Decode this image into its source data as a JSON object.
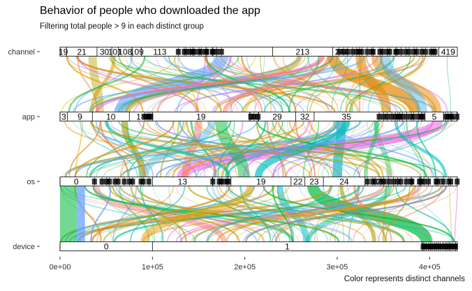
{
  "chart_data": {
    "type": "alluvial",
    "title": "Behavior of people who downloaded the app",
    "subtitle": "Filtering total people > 9 in each distinct group",
    "caption": "Color represents distinct channels",
    "axes": [
      "channel",
      "app",
      "os",
      "device"
    ],
    "xlim": [
      0,
      430000
    ],
    "xticks": [
      0,
      100000,
      200000,
      300000,
      400000
    ],
    "xtick_labels": [
      "0e+00",
      "1e+05",
      "2e+05",
      "3e+05",
      "4e+05"
    ],
    "strata": {
      "channel": [
        {
          "label": "19",
          "start": 0,
          "end": 7000
        },
        {
          "label": "21",
          "start": 7000,
          "end": 40000
        },
        {
          "label": "30",
          "start": 40000,
          "end": 56000
        },
        {
          "label": "101",
          "start": 56000,
          "end": 63000
        },
        {
          "label": "108",
          "start": 63000,
          "end": 78000
        },
        {
          "label": "109",
          "start": 78000,
          "end": 88000
        },
        {
          "label": "113",
          "start": 88000,
          "end": 128000
        },
        {
          "label": "213",
          "start": 230000,
          "end": 295000
        },
        {
          "label": "244",
          "start": 295000,
          "end": 315000
        },
        {
          "label": "419",
          "start": 410000,
          "end": 430000
        }
      ],
      "app": [
        {
          "label": "3",
          "start": 0,
          "end": 8000
        },
        {
          "label": "9",
          "start": 8000,
          "end": 35000
        },
        {
          "label": "10",
          "start": 35000,
          "end": 75000
        },
        {
          "label": "18",
          "start": 75000,
          "end": 100000
        },
        {
          "label": "19",
          "start": 100000,
          "end": 205000
        },
        {
          "label": "26",
          "start": 205000,
          "end": 215000
        },
        {
          "label": "29",
          "start": 215000,
          "end": 255000
        },
        {
          "label": "32",
          "start": 255000,
          "end": 275000
        },
        {
          "label": "35",
          "start": 275000,
          "end": 345000
        },
        {
          "label": "5",
          "start": 395000,
          "end": 415000
        },
        {
          "label": "15",
          "start": 415000,
          "end": 430000
        }
      ],
      "os": [
        {
          "label": "0",
          "start": 0,
          "end": 35000
        },
        {
          "label": "13",
          "start": 100000,
          "end": 165000
        },
        {
          "label": "18",
          "start": 165000,
          "end": 185000
        },
        {
          "label": "19",
          "start": 185000,
          "end": 250000
        },
        {
          "label": "22",
          "start": 250000,
          "end": 265000
        },
        {
          "label": "23",
          "start": 265000,
          "end": 285000
        },
        {
          "label": "24",
          "start": 285000,
          "end": 330000
        },
        {
          "label": "29",
          "start": 330000,
          "end": 365000
        },
        {
          "label": "36",
          "start": 390000,
          "end": 430000
        }
      ],
      "device": [
        {
          "label": "0",
          "start": 0,
          "end": 100000
        },
        {
          "label": "1",
          "start": 100000,
          "end": 392000
        },
        {
          "label": "2",
          "start": 392000,
          "end": 430000
        }
      ]
    }
  }
}
